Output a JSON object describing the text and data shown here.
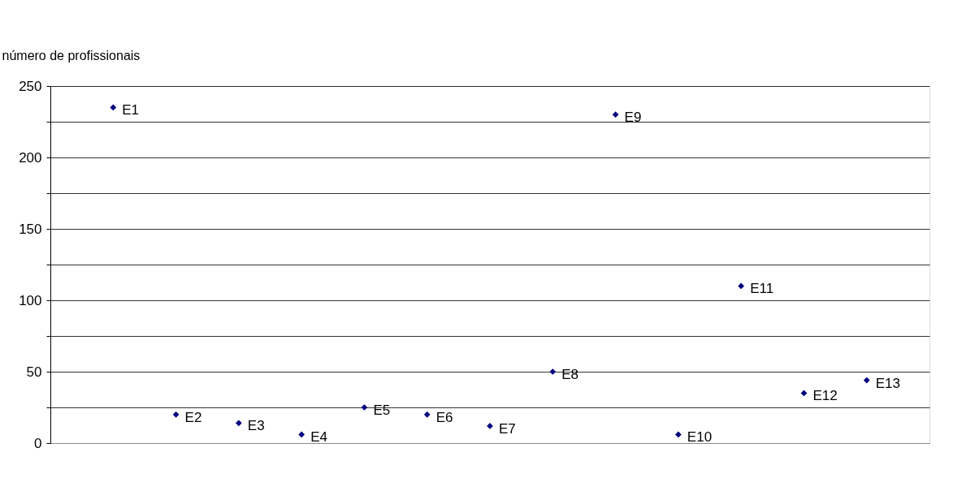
{
  "chart_data": {
    "type": "scatter",
    "ylabel": "número de profissionais",
    "categories": [
      null,
      null,
      null,
      null,
      null,
      null,
      null,
      null,
      null,
      null,
      null,
      null,
      null
    ],
    "series": [
      {
        "color": "#000080",
        "values": [
          235,
          20,
          14,
          6,
          25,
          20,
          12,
          50,
          230,
          6,
          110,
          35,
          44
        ],
        "value_labels": [
          "E1",
          "E2",
          "E3",
          "E4",
          "E5",
          "E6",
          "E7",
          "E8",
          "E9",
          "E10",
          "E11",
          "E12",
          "E13"
        ]
      }
    ],
    "ylim": [
      0,
      250
    ],
    "yticks": [
      0,
      {
        "value": 25,
        "label": null
      },
      50,
      {
        "value": 75,
        "label": null
      },
      100,
      {
        "value": 125,
        "label": null
      },
      150,
      {
        "value": 175,
        "label": null
      },
      200,
      {
        "value": 225,
        "label": null
      },
      250
    ],
    "grid": "y",
    "marker": "diamond",
    "tick_labels": "y"
  }
}
